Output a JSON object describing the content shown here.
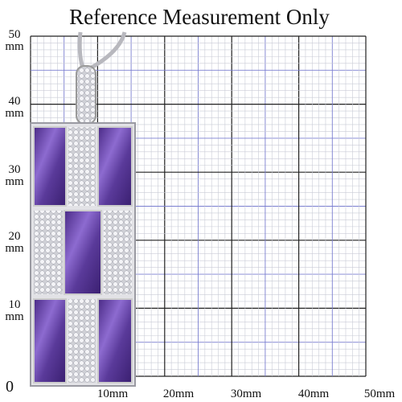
{
  "title": "Reference Measurement Only",
  "y_axis_labels": [
    {
      "number": "50",
      "unit": "mm"
    },
    {
      "number": "40",
      "unit": "mm"
    },
    {
      "number": "30",
      "unit": "mm"
    },
    {
      "number": "20",
      "unit": "mm"
    },
    {
      "number": "10",
      "unit": "mm"
    },
    {
      "number": "0"
    }
  ],
  "x_axis_labels": [
    "10mm",
    "20mm",
    "30mm",
    "40mm",
    "50mm"
  ]
}
